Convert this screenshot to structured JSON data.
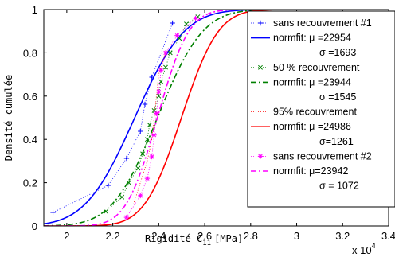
{
  "chart_data": {
    "type": "line",
    "xlabel": "Rigidité C",
    "xlabel_sub": "11",
    "xlabel_unit": "[MPa]",
    "ylabel": "Densité cumulée",
    "xlim": [
      1.9,
      3.4
    ],
    "ylim": [
      0,
      1
    ],
    "x_multiplier": "x 10",
    "x_multiplier_exp": "4",
    "xticks": [
      "2",
      "2.2",
      "2.4",
      "2.6",
      "2.8",
      "3",
      "3.2",
      "3.4"
    ],
    "yticks": [
      "0",
      "0.2",
      "0.4",
      "0.6",
      "0.8",
      "1"
    ],
    "grid": false,
    "legend_position": "right",
    "fits": [
      {
        "name": "normfit",
        "mu": 22954,
        "sigma": 1693,
        "color": "#0000ff",
        "dash": ""
      },
      {
        "name": "normfit",
        "mu": 23944,
        "sigma": 1545,
        "color": "#008000",
        "dash": "7,3,2,3"
      },
      {
        "name": "normfit",
        "mu": 24986,
        "sigma": 1261,
        "color": "#ff0000",
        "dash": ""
      },
      {
        "name": "normfit",
        "mu": 23942,
        "sigma": 1072,
        "color": "#ff00ff",
        "dash": "7,3,2,3"
      }
    ],
    "series": [
      {
        "name": "sans recouvrement #1",
        "marker": "+",
        "color": "#0000ff",
        "x": [
          1.94,
          2.18,
          2.26,
          2.32,
          2.34,
          2.37,
          2.46
        ],
        "y": [
          0.0625,
          0.1875,
          0.3125,
          0.4375,
          0.5625,
          0.6875,
          0.9375
        ]
      },
      {
        "name": "50 % recouvrement",
        "marker": "x",
        "color": "#008000",
        "x": [
          2.17,
          2.24,
          2.27,
          2.31,
          2.33,
          2.35,
          2.36,
          2.38,
          2.4,
          2.41,
          2.43,
          2.45,
          2.49,
          2.52,
          2.57
        ],
        "y": [
          0.0667,
          0.1333,
          0.2,
          0.2667,
          0.3333,
          0.4,
          0.4667,
          0.5333,
          0.6,
          0.6667,
          0.7333,
          0.8,
          0.8667,
          0.9333,
          0.9667
        ]
      },
      {
        "name": "95% recouvrement",
        "marker": "",
        "color": "#ff0000",
        "x": [
          2.29,
          2.32,
          2.35,
          2.37,
          2.38,
          2.39,
          2.4,
          2.43
        ],
        "y": [
          0.1,
          0.2,
          0.3,
          0.4,
          0.5,
          0.6,
          0.7,
          0.8
        ]
      },
      {
        "name": "sans recouvrement #2",
        "marker": "*",
        "color": "#ff00ff",
        "x": [
          2.26,
          2.32,
          2.35,
          2.37,
          2.38,
          2.39,
          2.4,
          2.41,
          2.43,
          2.48,
          2.56
        ],
        "y": [
          0.04,
          0.14,
          0.22,
          0.32,
          0.42,
          0.52,
          0.62,
          0.72,
          0.8,
          0.88,
          0.96
        ]
      }
    ],
    "legend": [
      {
        "label": "sans recouvrement #1",
        "kind": "data",
        "series": 0
      },
      {
        "label": "normfit: μ =22954",
        "label2": "σ =1693",
        "kind": "fit",
        "fit": 0
      },
      {
        "label": "50 % recouvrement",
        "kind": "data",
        "series": 1
      },
      {
        "label": "normfit: μ =23944",
        "label2": "σ =1545",
        "kind": "fit",
        "fit": 1
      },
      {
        "label": "95% recouvrement",
        "kind": "data",
        "series": 2
      },
      {
        "label": "normfit: μ =24986",
        "label2": "σ=1261",
        "kind": "fit",
        "fit": 2
      },
      {
        "label": "sans recouvrement #2",
        "kind": "data",
        "series": 3
      },
      {
        "label": "normfit: μ=23942",
        "label2": "σ = 1072",
        "kind": "fit",
        "fit": 3
      }
    ]
  }
}
